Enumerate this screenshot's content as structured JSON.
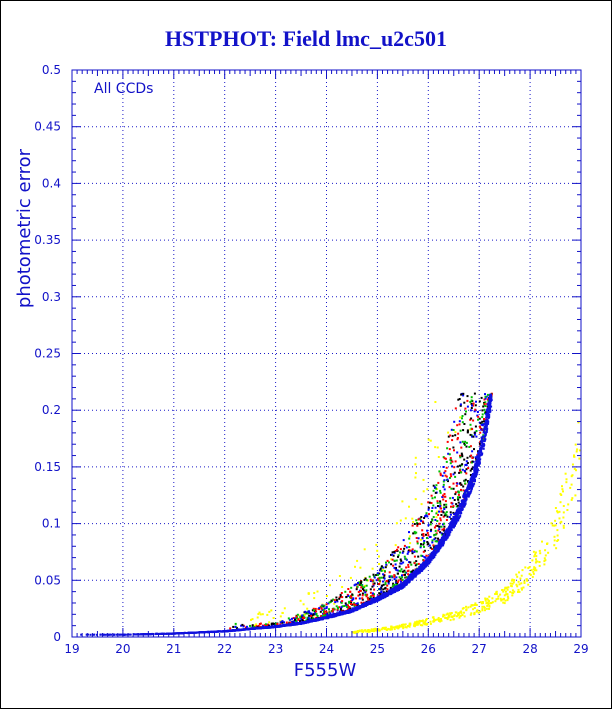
{
  "chart_data": {
    "type": "scatter",
    "title": "HSTPHOT: Field lmc_u2c501",
    "xlabel": "F555W",
    "ylabel": "photometric error",
    "annotation": "All CCDs",
    "xlim": [
      19,
      29
    ],
    "ylim": [
      0,
      0.5
    ],
    "x_ticks": [
      "19",
      "20",
      "21",
      "22",
      "23",
      "24",
      "25",
      "26",
      "27",
      "28",
      "29"
    ],
    "y_ticks": [
      "0",
      "0.05",
      "0.1",
      "0.15",
      "0.2",
      "0.25",
      "0.3",
      "0.35",
      "0.4",
      "0.45",
      "0.5"
    ],
    "grid": "dotted",
    "colors": {
      "axis": "#1212c8",
      "grid": "#1a1ac8",
      "main_locus": "#1010e0",
      "scatter_colors": [
        "#000000",
        "#0000ff",
        "#00c000",
        "#ff0000",
        "#ffff00",
        "#00ffff",
        "#ff00ff"
      ],
      "faint_sequence": "#ffff00"
    },
    "series": [
      {
        "kind": "main_locus_envelope",
        "note_units": "x in F555W mag, y in photometric error",
        "x": [
          19.0,
          20.0,
          21.0,
          22.0,
          23.0,
          23.5,
          24.0,
          24.5,
          25.0,
          25.5,
          26.0,
          26.3,
          26.6,
          26.9,
          27.1,
          27.25
        ],
        "y": [
          0.002,
          0.002,
          0.003,
          0.005,
          0.009,
          0.012,
          0.017,
          0.023,
          0.033,
          0.045,
          0.066,
          0.085,
          0.108,
          0.14,
          0.175,
          0.215
        ]
      },
      {
        "kind": "faint_secondary_sequence",
        "x": [
          24.5,
          25.0,
          25.5,
          26.0,
          26.5,
          27.0,
          27.5,
          28.0,
          28.5,
          29.0
        ],
        "y": [
          0.004,
          0.006,
          0.009,
          0.013,
          0.018,
          0.025,
          0.035,
          0.055,
          0.09,
          0.16
        ]
      },
      {
        "kind": "scatter_spread_upper",
        "x": [
          23.0,
          24.0,
          25.0,
          25.5,
          26.0,
          26.3,
          26.6
        ],
        "y": [
          0.012,
          0.03,
          0.06,
          0.085,
          0.12,
          0.16,
          0.215
        ]
      }
    ],
    "clip_ymax": 0.215
  }
}
